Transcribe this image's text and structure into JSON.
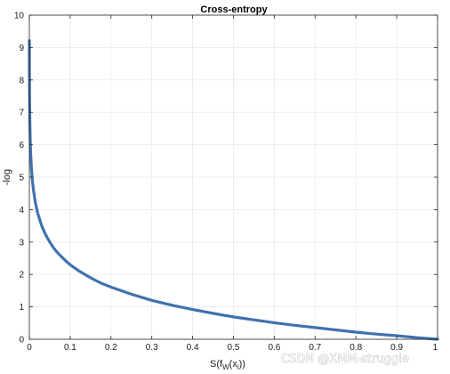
{
  "chart_data": {
    "type": "line",
    "title": "Cross-entropy",
    "xlabel": "S(f_W(x_i))",
    "ylabel": "-log",
    "xlim": [
      0,
      1
    ],
    "ylim": [
      0,
      10
    ],
    "xticks": [
      0,
      0.1,
      0.2,
      0.3,
      0.4,
      0.5,
      0.6,
      0.7,
      0.8,
      0.9,
      1
    ],
    "xtick_labels": [
      "0",
      "0.1",
      "0.2",
      "0.3",
      "0.4",
      "0.5",
      "0.6",
      "0.7",
      "0.8",
      "0.9",
      "1"
    ],
    "yticks": [
      0,
      1,
      2,
      3,
      4,
      5,
      6,
      7,
      8,
      9,
      10
    ],
    "ytick_labels": [
      "0",
      "1",
      "2",
      "3",
      "4",
      "5",
      "6",
      "7",
      "8",
      "9",
      "10"
    ],
    "grid": true,
    "color": "#3f72af",
    "series": [
      {
        "x": [
          0.0001,
          0.0002,
          0.0005,
          0.001,
          0.002,
          0.003,
          0.005,
          0.0075,
          0.01,
          0.015,
          0.02,
          0.03,
          0.04,
          0.05,
          0.06,
          0.07,
          0.08,
          0.09,
          0.1,
          0.12,
          0.14,
          0.16,
          0.18,
          0.2,
          0.25,
          0.3,
          0.35,
          0.4,
          0.45,
          0.5,
          0.55,
          0.6,
          0.65,
          0.7,
          0.75,
          0.8,
          0.85,
          0.9,
          0.95,
          1.0
        ],
        "y": [
          9.21,
          8.52,
          7.6,
          6.91,
          6.21,
          5.81,
          5.3,
          4.89,
          4.61,
          4.2,
          3.91,
          3.51,
          3.22,
          3.0,
          2.81,
          2.66,
          2.53,
          2.41,
          2.3,
          2.12,
          1.97,
          1.83,
          1.71,
          1.61,
          1.39,
          1.2,
          1.05,
          0.92,
          0.8,
          0.69,
          0.6,
          0.51,
          0.43,
          0.36,
          0.29,
          0.22,
          0.16,
          0.11,
          0.05,
          0.0
        ]
      }
    ]
  },
  "watermark": "CSDN @XMM-struggle"
}
